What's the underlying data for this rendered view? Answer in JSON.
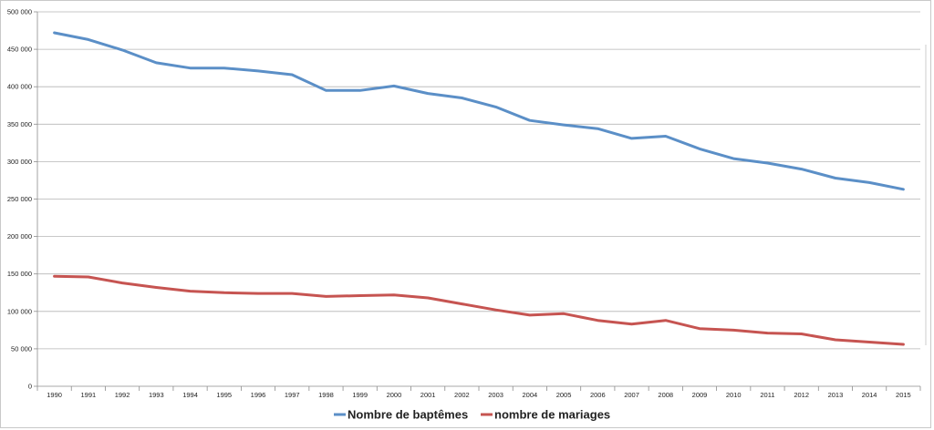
{
  "chart_data": {
    "type": "line",
    "title": "",
    "xlabel": "",
    "ylabel": "",
    "x": [
      1990,
      1991,
      1992,
      1993,
      1994,
      1995,
      1996,
      1997,
      1998,
      1999,
      2000,
      2001,
      2002,
      2003,
      2004,
      2005,
      2006,
      2007,
      2008,
      2009,
      2010,
      2011,
      2012,
      2013,
      2014,
      2015
    ],
    "x_tick_labels": [
      "1990",
      "1991",
      "1992",
      "1993",
      "1994",
      "1995",
      "1996",
      "1997",
      "1998",
      "1999",
      "2000",
      "2001",
      "2002",
      "2003",
      "2004",
      "2005",
      "2006",
      "2007",
      "2008",
      "2009",
      "2010",
      "2011",
      "2012",
      "2013",
      "2014",
      "2015"
    ],
    "ylim": [
      0,
      500000
    ],
    "y_ticks": [
      0,
      50000,
      100000,
      150000,
      200000,
      250000,
      300000,
      350000,
      400000,
      450000,
      500000
    ],
    "y_tick_labels": [
      "0",
      "50 000",
      "100 000",
      "150 000",
      "200 000",
      "250 000",
      "300 000",
      "350 000",
      "400 000",
      "450 000",
      "500 000"
    ],
    "grid": true,
    "legend_position": "bottom",
    "series": [
      {
        "name": "Nombre de baptêmes",
        "color": "#5b8fc7",
        "values": [
          472000,
          463000,
          449000,
          432000,
          425000,
          425000,
          421000,
          416000,
          395000,
          395000,
          401000,
          391000,
          385000,
          373000,
          355000,
          349000,
          344000,
          331000,
          334000,
          317000,
          304000,
          298000,
          290000,
          278000,
          272000,
          263000
        ]
      },
      {
        "name": "nombre de mariages",
        "color": "#c65451",
        "values": [
          147000,
          146000,
          138000,
          132000,
          127000,
          125000,
          124000,
          124000,
          120000,
          121000,
          122000,
          118000,
          110000,
          102000,
          95000,
          97000,
          88000,
          83000,
          88000,
          77000,
          75000,
          71000,
          70000,
          62000,
          59000,
          56000
        ]
      }
    ]
  }
}
